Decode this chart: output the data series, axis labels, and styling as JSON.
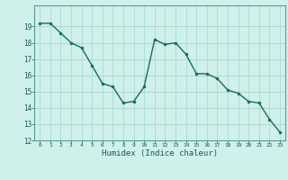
{
  "x": [
    0,
    1,
    2,
    3,
    4,
    5,
    6,
    7,
    8,
    9,
    10,
    11,
    12,
    13,
    14,
    15,
    16,
    17,
    18,
    19,
    20,
    21,
    22,
    23
  ],
  "y": [
    19.2,
    19.2,
    18.6,
    18.0,
    17.7,
    16.6,
    15.5,
    15.3,
    14.3,
    14.4,
    15.3,
    18.2,
    17.9,
    18.0,
    17.3,
    16.1,
    16.1,
    15.8,
    15.1,
    14.9,
    14.4,
    14.3,
    13.3,
    12.5
  ],
  "xlabel": "Humidex (Indice chaleur)",
  "ylim": [
    12,
    20
  ],
  "xlim": [
    -0.5,
    23.5
  ],
  "yticks": [
    12,
    13,
    14,
    15,
    16,
    17,
    18,
    19
  ],
  "xticks": [
    0,
    1,
    2,
    3,
    4,
    5,
    6,
    7,
    8,
    9,
    10,
    11,
    12,
    13,
    14,
    15,
    16,
    17,
    18,
    19,
    20,
    21,
    22,
    23
  ],
  "line_color": "#1a6b5a",
  "marker_color": "#1a6b5a",
  "bg_color": "#cff0eb",
  "grid_color_major": "#a8ddd6",
  "grid_color_minor": "#bce8e2",
  "axes_color": "#5a9a90",
  "tick_label_color": "#1a5a52",
  "xlabel_color": "#1a5a52"
}
